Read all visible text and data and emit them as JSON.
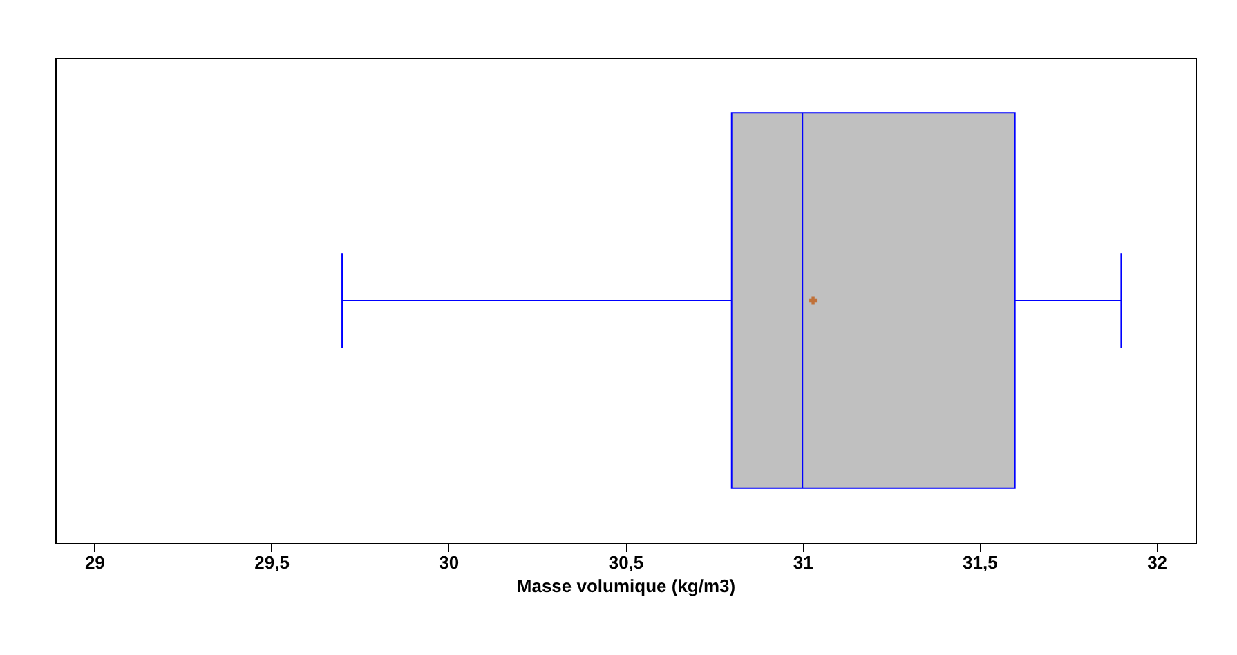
{
  "chart_data": {
    "type": "box",
    "orientation": "horizontal",
    "categories": [
      null
    ],
    "xlabel": "Masse volumique (kg/m3)",
    "series": [
      {
        "color": "#c0c0c0",
        "boxes": [
          {
            "low": 29.7,
            "q1": 30.8,
            "median": 31.0,
            "q3": 31.6,
            "high": 31.9,
            "mean": 31.03
          }
        ]
      }
    ],
    "xlim": [
      28.89,
      32.11
    ],
    "xticks": [
      29,
      {
        "value": 29.5,
        "label": "29,5"
      },
      30,
      {
        "value": 30.5,
        "label": "30,5"
      },
      31,
      {
        "value": 31.5,
        "label": "31,5"
      },
      32
    ],
    "grid": false
  }
}
